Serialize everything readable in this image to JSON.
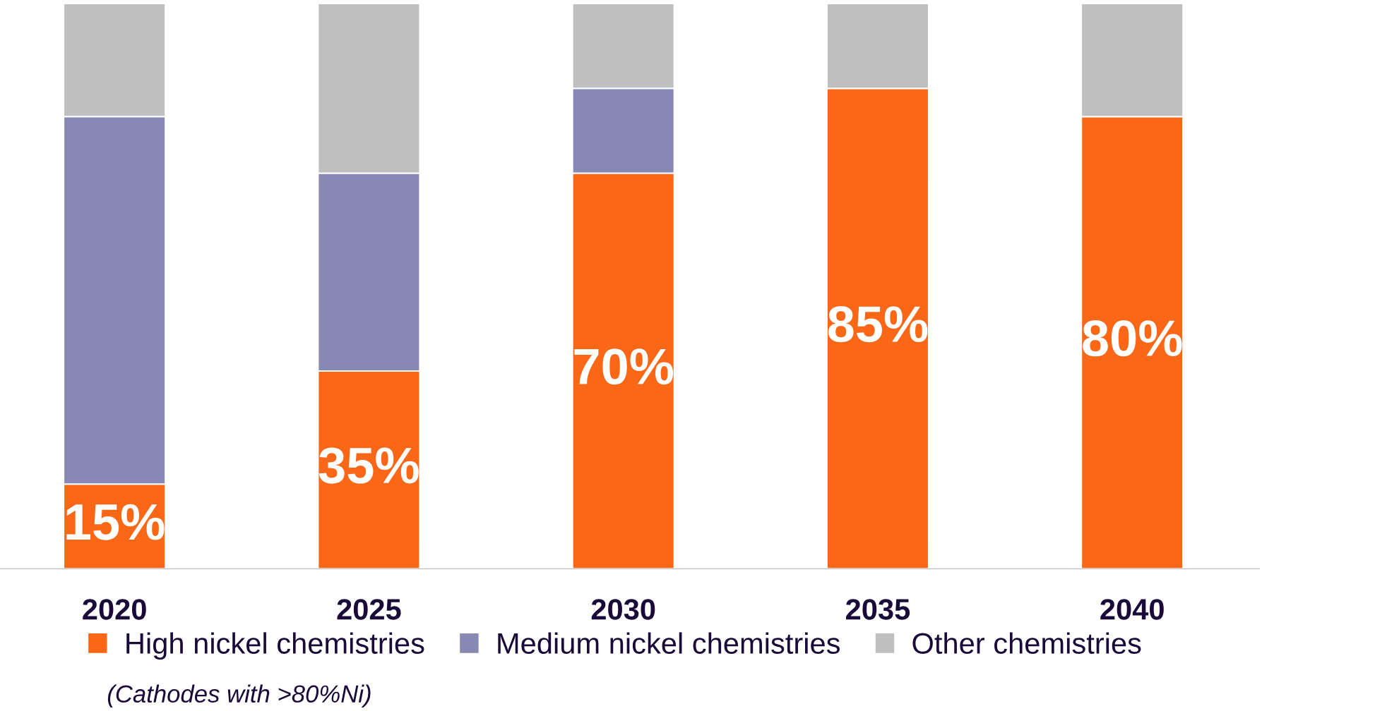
{
  "chart_data": {
    "type": "bar",
    "stacked": true,
    "categories": [
      "2020",
      "2025",
      "2030",
      "2035",
      "2040"
    ],
    "series": [
      {
        "name": "High nickel chemistries",
        "color": "#f96717",
        "values": [
          15,
          35,
          70,
          85,
          80
        ],
        "value_labels": [
          "15%",
          "35%",
          "70%",
          "85%",
          "80%"
        ]
      },
      {
        "name": "Medium nickel chemistries",
        "color": "#8789b4",
        "values": [
          65,
          35,
          15,
          0,
          0
        ]
      },
      {
        "name": "Other chemistries",
        "color": "#bfbfbf",
        "values": [
          20,
          30,
          15,
          15,
          20
        ]
      }
    ],
    "ylim": [
      0,
      100
    ],
    "tick_labels": "x",
    "legend": "bottom",
    "annotations": [
      "(Cathodes with >80%Ni)"
    ]
  }
}
